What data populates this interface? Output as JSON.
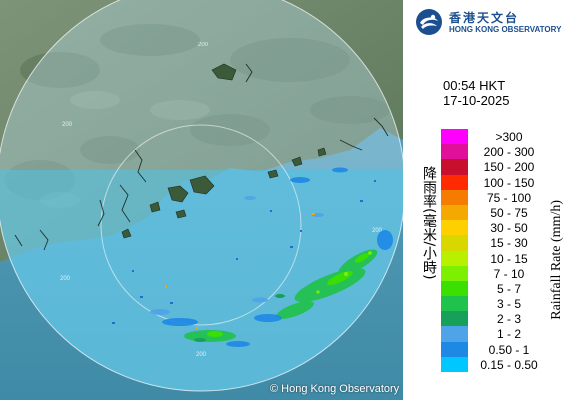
{
  "map": {
    "credit": "© Hong Kong Observatory",
    "range_labels": [
      "200",
      "200",
      "200",
      "200",
      "200"
    ]
  },
  "logo": {
    "cn": "香港天文台",
    "en": "HONG KONG OBSERVATORY"
  },
  "timestamp": {
    "time": "00:54 HKT",
    "date": "17-10-2025"
  },
  "legend": {
    "title_cn": "降雨率(毫米/小時)",
    "title_en": "Rainfall Rate (mm/h)",
    "items": [
      {
        "label": ">300",
        "color": "#ff00ff"
      },
      {
        "label": "200 - 300",
        "color": "#e0109a"
      },
      {
        "label": "150 - 200",
        "color": "#c8102e"
      },
      {
        "label": "100 - 150",
        "color": "#ff2a00"
      },
      {
        "label": "75 - 100",
        "color": "#f57c00"
      },
      {
        "label": "50 - 75",
        "color": "#f5a800"
      },
      {
        "label": "30 - 50",
        "color": "#ffd000"
      },
      {
        "label": "15 - 30",
        "color": "#d8d800"
      },
      {
        "label": "10 - 15",
        "color": "#b8f000"
      },
      {
        "label": "7 - 10",
        "color": "#7cf000"
      },
      {
        "label": "5 - 7",
        "color": "#3ce000"
      },
      {
        "label": "3 - 5",
        "color": "#1fc24a"
      },
      {
        "label": "2 - 3",
        "color": "#16a05a"
      },
      {
        "label": "1 - 2",
        "color": "#4fa3e8"
      },
      {
        "label": "0.50 - 1",
        "color": "#1e88e5"
      },
      {
        "label": "0.15 - 0.50",
        "color": "#00c8ff"
      }
    ]
  }
}
